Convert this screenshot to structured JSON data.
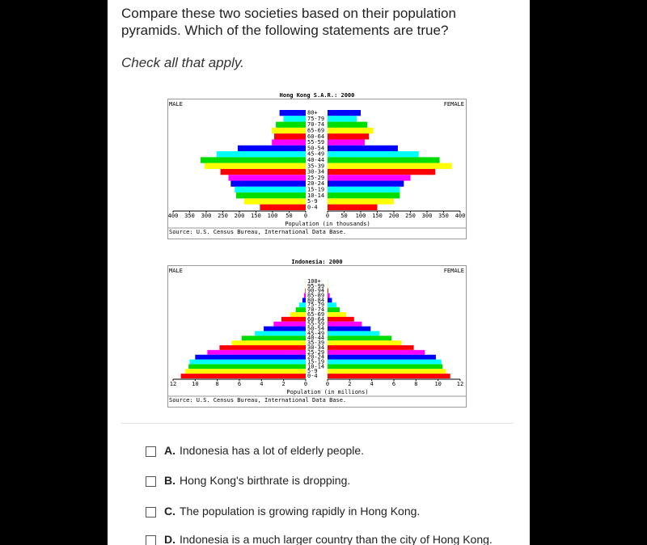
{
  "question": {
    "text_line1": "Compare these two societies based on their population",
    "text_line2": "pyramids. Which of the following statements are true?",
    "instruction": "Check all that apply."
  },
  "charts": [
    {
      "type": "population_pyramid",
      "title": "Hong Kong S.A.R.: 2000",
      "left_label": "MALE",
      "right_label": "FEMALE",
      "xlabel": "Population (in thousands)",
      "source": "Source: U.S. Census Bureau, International Data Base.",
      "categories": [
        "80+",
        "75-79",
        "70-74",
        "65-69",
        "60-64",
        "55-59",
        "50-54",
        "45-49",
        "40-44",
        "35-39",
        "30-34",
        "25-29",
        "20-24",
        "15-19",
        "10-14",
        "5-9",
        "0-4"
      ],
      "series": [
        {
          "name": "MALE",
          "values": [
            79,
            67,
            90,
            102,
            95,
            102,
            205,
            269,
            317,
            305,
            257,
            233,
            226,
            214,
            210,
            186,
            138
          ]
        },
        {
          "name": "FEMALE",
          "values": [
            100,
            88,
            120,
            138,
            125,
            112,
            212,
            275,
            338,
            375,
            325,
            250,
            230,
            218,
            218,
            200,
            150
          ]
        }
      ],
      "colors": [
        "#ff0000",
        "#ffff00",
        "#00dd00",
        "#00ffff",
        "#0000ff",
        "#ff00ff"
      ],
      "xlim": [
        0,
        400
      ],
      "xticks": [
        0,
        50,
        100,
        150,
        200,
        250,
        300,
        350,
        400
      ]
    },
    {
      "type": "population_pyramid",
      "title": "Indonesia: 2000",
      "left_label": "MALE",
      "right_label": "FEMALE",
      "xlabel": "Population (in millions)",
      "source": "Source: U.S. Census Bureau, International Data Base.",
      "categories": [
        "100+",
        "95-99",
        "90-94",
        "85-89",
        "80-84",
        "75-79",
        "70-74",
        "65-69",
        "60-64",
        "55-59",
        "50-54",
        "45-49",
        "40-44",
        "35-39",
        "30-34",
        "25-29",
        "20-24",
        "15-19",
        "10-14",
        "5-9",
        "0-4"
      ],
      "series": [
        {
          "name": "MALE",
          "values": [
            0.01,
            0.02,
            0.05,
            0.15,
            0.3,
            0.6,
            0.9,
            1.4,
            2.2,
            2.9,
            3.8,
            4.6,
            5.8,
            6.7,
            7.8,
            8.9,
            10,
            10.5,
            10.6,
            10.9,
            11.3
          ]
        },
        {
          "name": "FEMALE",
          "values": [
            0.01,
            0.03,
            0.07,
            0.2,
            0.4,
            0.8,
            1.1,
            1.7,
            2.4,
            3.1,
            3.9,
            4.7,
            5.8,
            6.7,
            7.8,
            8.8,
            9.8,
            10.3,
            10.4,
            10.7,
            11.1
          ]
        }
      ],
      "colors": [
        "#ff0000",
        "#ffff00",
        "#00dd00",
        "#00ffff",
        "#0000ff",
        "#ff00ff"
      ],
      "xlim": [
        0,
        12
      ],
      "xticks": [
        0,
        2,
        4,
        6,
        8,
        10,
        12
      ]
    }
  ],
  "options": [
    {
      "letter": "A.",
      "text": "Indonesia has a lot of elderly people."
    },
    {
      "letter": "B.",
      "text": "Hong Kong's birthrate is dropping."
    },
    {
      "letter": "C.",
      "text": "The population is growing rapidly in Hong Kong."
    },
    {
      "letter": "D.",
      "text": "Indonesia is a much larger country than the city of Hong Kong."
    }
  ]
}
